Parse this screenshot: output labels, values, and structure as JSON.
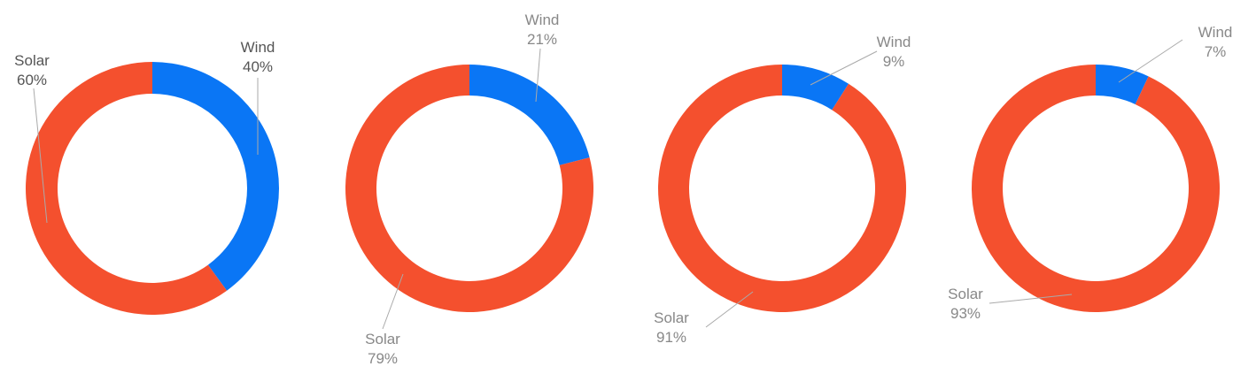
{
  "chart_data": [
    {
      "type": "pie",
      "categories": [
        "Wind",
        "Solar"
      ],
      "values": [
        40,
        60
      ],
      "value_labels": [
        "40%",
        "60%"
      ],
      "colors": [
        "#0a76f5",
        "#f4502e"
      ]
    },
    {
      "type": "pie",
      "categories": [
        "Wind",
        "Solar"
      ],
      "values": [
        21,
        79
      ],
      "value_labels": [
        "21%",
        "79%"
      ],
      "colors": [
        "#0a76f5",
        "#f4502e"
      ]
    },
    {
      "type": "pie",
      "categories": [
        "Wind",
        "Solar"
      ],
      "values": [
        9,
        91
      ],
      "value_labels": [
        "9%",
        "91%"
      ],
      "colors": [
        "#0a76f5",
        "#f4502e"
      ]
    },
    {
      "type": "pie",
      "categories": [
        "Wind",
        "Solar"
      ],
      "values": [
        7,
        93
      ],
      "value_labels": [
        "7%",
        "93%"
      ],
      "colors": [
        "#0a76f5",
        "#f4502e"
      ]
    }
  ]
}
